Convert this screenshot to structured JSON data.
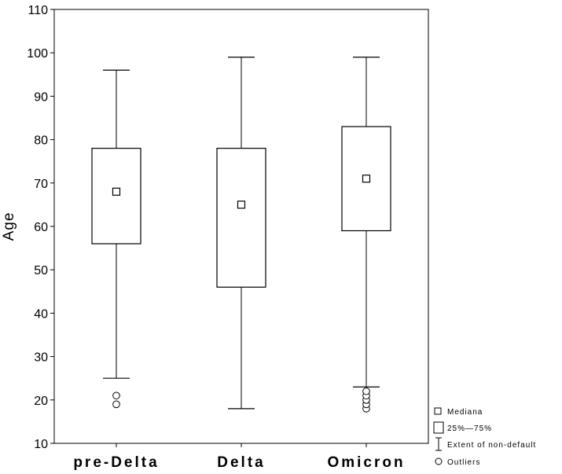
{
  "chart_data": {
    "type": "box",
    "ylabel": "Age",
    "ylim": [
      10,
      110
    ],
    "yticks": [
      10,
      20,
      30,
      40,
      50,
      60,
      70,
      80,
      90,
      100,
      110
    ],
    "categories": [
      "pre-Delta",
      "Delta",
      "Omicron"
    ],
    "boxes": [
      {
        "category": "pre-Delta",
        "median": 68,
        "q1": 56,
        "q3": 78,
        "whisker_low": 25,
        "whisker_high": 96,
        "outliers": [
          19,
          21
        ]
      },
      {
        "category": "Delta",
        "median": 65,
        "q1": 46,
        "q3": 78,
        "whisker_low": 18,
        "whisker_high": 99,
        "outliers": []
      },
      {
        "category": "Omicron",
        "median": 71,
        "q1": 59,
        "q3": 83,
        "whisker_low": 23,
        "whisker_high": 99,
        "outliers": [
          18,
          19,
          20,
          21,
          22
        ]
      }
    ],
    "legend": {
      "position": "bottom-right",
      "entries": [
        "Mediana",
        "25%—75%",
        "Extent of non-default",
        "Outliers"
      ]
    },
    "grid": false
  }
}
